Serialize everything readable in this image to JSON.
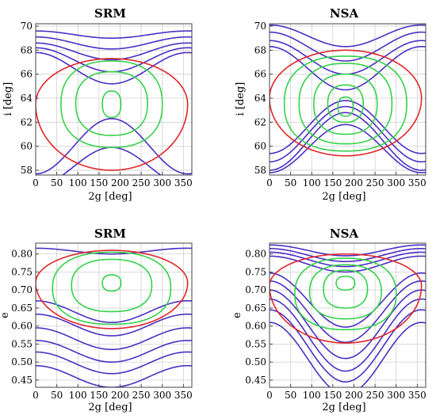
{
  "colors": {
    "circulating": "#4b2fc4",
    "separatrix": "#e0262a",
    "librating": "#33d24a"
  },
  "chart_data": [
    {
      "type": "line",
      "title": "SRM",
      "xlabel": "2g [deg]",
      "ylabel": "i [deg]",
      "xlim": [
        0,
        370
      ],
      "ylim": [
        57.6,
        70.2
      ],
      "xticks": [
        0,
        50,
        100,
        150,
        200,
        250,
        300,
        350
      ],
      "yticks": [
        58,
        60,
        62,
        64,
        66,
        68,
        70
      ],
      "grid": true,
      "center": [
        180,
        63.5
      ],
      "series": [
        {
          "kind": "circulating",
          "baseline": 69.3,
          "amplitude": -0.3
        },
        {
          "kind": "circulating",
          "baseline": 68.6,
          "amplitude": -0.5
        },
        {
          "kind": "circulating",
          "baseline": 67.9,
          "amplitude": -0.7
        },
        {
          "kind": "circulating",
          "baseline": 67.2,
          "amplitude": -1.0
        },
        {
          "kind": "circulating",
          "baseline": 66.5,
          "amplitude": -1.3
        },
        {
          "kind": "circulating",
          "baseline": 60.0,
          "amplitude": 2.3
        },
        {
          "kind": "circulating",
          "baseline": 58.3,
          "amplitude": 1.6
        },
        {
          "kind": "separatrix",
          "top": 67.3,
          "bottom": 58.0,
          "end": 63.5
        },
        {
          "kind": "librating",
          "halfwidth": 120,
          "top": 67.1,
          "bottom": 59.9
        },
        {
          "kind": "librating",
          "halfwidth": 85,
          "top": 66.2,
          "bottom": 60.9
        },
        {
          "kind": "librating",
          "halfwidth": 22,
          "top": 64.6,
          "bottom": 62.4
        }
      ]
    },
    {
      "type": "line",
      "title": "NSA",
      "xlabel": "2g [deg]",
      "ylabel": "i [deg]",
      "xlim": [
        0,
        370
      ],
      "ylim": [
        57.6,
        70.2
      ],
      "xticks": [
        0,
        50,
        100,
        150,
        200,
        250,
        300,
        350
      ],
      "yticks": [
        58,
        60,
        62,
        64,
        66,
        68,
        70
      ],
      "grid": true,
      "center": [
        180,
        63.5
      ],
      "series": [
        {
          "kind": "circulating",
          "baseline": 69.2,
          "amplitude": -0.9
        },
        {
          "kind": "circulating",
          "baseline": 68.3,
          "amplitude": -1.2
        },
        {
          "kind": "circulating",
          "baseline": 67.4,
          "amplitude": -1.4
        },
        {
          "kind": "circulating",
          "baseline": 66.5,
          "amplitude": -1.8
        },
        {
          "kind": "circulating",
          "baseline": 61.6,
          "amplitude": 2.2
        },
        {
          "kind": "circulating",
          "baseline": 61.0,
          "amplitude": 2.3
        },
        {
          "kind": "circulating",
          "baseline": 60.4,
          "amplitude": 2.4
        },
        {
          "kind": "circulating",
          "baseline": 59.8,
          "amplitude": 2.0
        },
        {
          "kind": "separatrix",
          "top": 68.0,
          "bottom": 59.2,
          "end": 64.0
        },
        {
          "kind": "librating",
          "halfwidth": 145,
          "top": 67.5,
          "bottom": 59.6
        },
        {
          "kind": "librating",
          "halfwidth": 110,
          "top": 66.9,
          "bottom": 60.2
        },
        {
          "kind": "librating",
          "halfwidth": 75,
          "top": 66.0,
          "bottom": 61.0
        },
        {
          "kind": "librating",
          "halfwidth": 42,
          "top": 65.1,
          "bottom": 62.0
        },
        {
          "kind": "librating",
          "halfwidth": 18,
          "top": 64.1,
          "bottom": 62.5
        }
      ]
    },
    {
      "type": "line",
      "title": "SRM",
      "xlabel": "2g [deg]",
      "ylabel": "e",
      "xlim": [
        0,
        370
      ],
      "ylim": [
        0.43,
        0.83
      ],
      "xticks": [
        0,
        50,
        100,
        150,
        200,
        250,
        300,
        350
      ],
      "yticks": [
        0.45,
        0.5,
        0.55,
        0.6,
        0.65,
        0.7,
        0.75,
        0.8
      ],
      "grid": true,
      "center": [
        180,
        0.72
      ],
      "series": [
        {
          "kind": "circulating",
          "baseline": 0.808,
          "amplitude": -0.008
        },
        {
          "kind": "circulating",
          "baseline": 0.64,
          "amplitude": -0.03
        },
        {
          "kind": "circulating",
          "baseline": 0.603,
          "amplitude": -0.03
        },
        {
          "kind": "circulating",
          "baseline": 0.565,
          "amplitude": -0.03
        },
        {
          "kind": "circulating",
          "baseline": 0.53,
          "amplitude": -0.03
        },
        {
          "kind": "circulating",
          "baseline": 0.498,
          "amplitude": -0.03
        },
        {
          "kind": "circulating",
          "baseline": 0.46,
          "amplitude": -0.03
        },
        {
          "kind": "separatrix",
          "top": 0.81,
          "bottom": 0.593,
          "end": 0.72
        },
        {
          "kind": "librating",
          "halfwidth": 140,
          "top": 0.805,
          "bottom": 0.605
        },
        {
          "kind": "librating",
          "halfwidth": 95,
          "top": 0.785,
          "bottom": 0.64
        },
        {
          "kind": "librating",
          "halfwidth": 22,
          "top": 0.742,
          "bottom": 0.697
        }
      ]
    },
    {
      "type": "line",
      "title": "NSA",
      "xlabel": "2g [deg]",
      "ylabel": "e",
      "xlim": [
        0,
        370
      ],
      "ylim": [
        0.43,
        0.83
      ],
      "xticks": [
        0,
        50,
        100,
        150,
        200,
        250,
        300,
        350
      ],
      "yticks": [
        0.45,
        0.5,
        0.55,
        0.6,
        0.65,
        0.7,
        0.75,
        0.8
      ],
      "grid": true,
      "center": [
        180,
        0.72
      ],
      "series": [
        {
          "kind": "circulating",
          "baseline": 0.81,
          "amplitude": -0.015
        },
        {
          "kind": "circulating",
          "baseline": 0.797,
          "amplitude": -0.018
        },
        {
          "kind": "circulating",
          "baseline": 0.785,
          "amplitude": -0.02
        },
        {
          "kind": "circulating",
          "baseline": 0.772,
          "amplitude": -0.022
        },
        {
          "kind": "circulating",
          "baseline": 0.672,
          "amplitude": -0.075
        },
        {
          "kind": "circulating",
          "baseline": 0.64,
          "amplitude": -0.085
        },
        {
          "kind": "circulating",
          "baseline": 0.605,
          "amplitude": -0.095
        },
        {
          "kind": "circulating",
          "baseline": 0.575,
          "amplitude": -0.1
        },
        {
          "kind": "circulating",
          "baseline": 0.545,
          "amplitude": -0.1
        },
        {
          "kind": "circulating",
          "baseline": 0.51,
          "amplitude": -0.1
        },
        {
          "kind": "separatrix",
          "top": 0.8,
          "bottom": 0.553,
          "end": 0.712
        },
        {
          "kind": "librating",
          "halfwidth": 120,
          "top": 0.788,
          "bottom": 0.59
        },
        {
          "kind": "librating",
          "halfwidth": 85,
          "top": 0.77,
          "bottom": 0.62
        },
        {
          "kind": "librating",
          "halfwidth": 52,
          "top": 0.755,
          "bottom": 0.65
        },
        {
          "kind": "librating",
          "halfwidth": 22,
          "top": 0.738,
          "bottom": 0.7
        }
      ]
    }
  ]
}
